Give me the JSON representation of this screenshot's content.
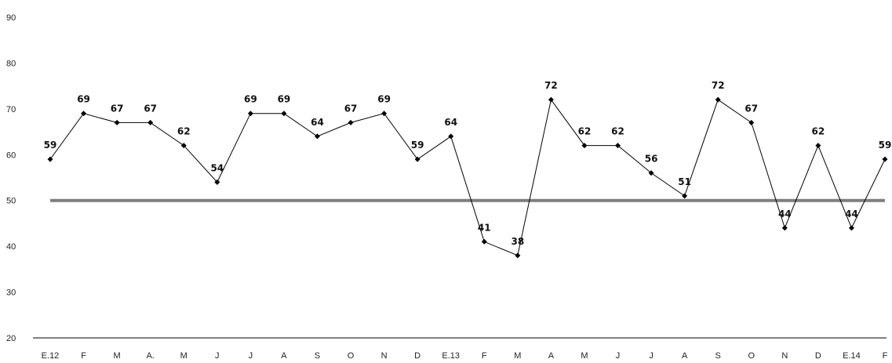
{
  "chart_data": {
    "type": "line",
    "title": "",
    "xlabel": "",
    "ylabel": "",
    "categories": [
      "E.12",
      "F",
      "M",
      "A.",
      "M",
      "J",
      "J",
      "A",
      "S",
      "O",
      "N",
      "D",
      "E.13",
      "F",
      "M",
      "A",
      "M",
      "J",
      "J",
      "A",
      "S",
      "O",
      "N",
      "D",
      "E.14",
      "F"
    ],
    "series": [
      {
        "values": [
          59,
          69,
          67,
          67,
          62,
          54,
          69,
          69,
          64,
          67,
          69,
          59,
          64,
          41,
          38,
          72,
          62,
          62,
          56,
          51,
          72,
          67,
          44,
          62,
          44,
          59
        ],
        "color": "#000000"
      }
    ],
    "data_labels": [
      "59",
      "69",
      "67",
      "67",
      "62",
      "54",
      "69",
      "69",
      "64",
      "67",
      "69",
      "59",
      "64",
      "41",
      "38",
      "72",
      "62",
      "62",
      "56",
      "51",
      "72",
      "67",
      "44",
      "62",
      "44",
      "59"
    ],
    "reference_line": {
      "value": 50,
      "color": "#7f7f7f"
    },
    "ylim": [
      20,
      90
    ],
    "yticks": [
      "20",
      "30",
      "40",
      "50",
      "60",
      "70",
      "80",
      "90"
    ],
    "grid": false,
    "legend": "none"
  }
}
